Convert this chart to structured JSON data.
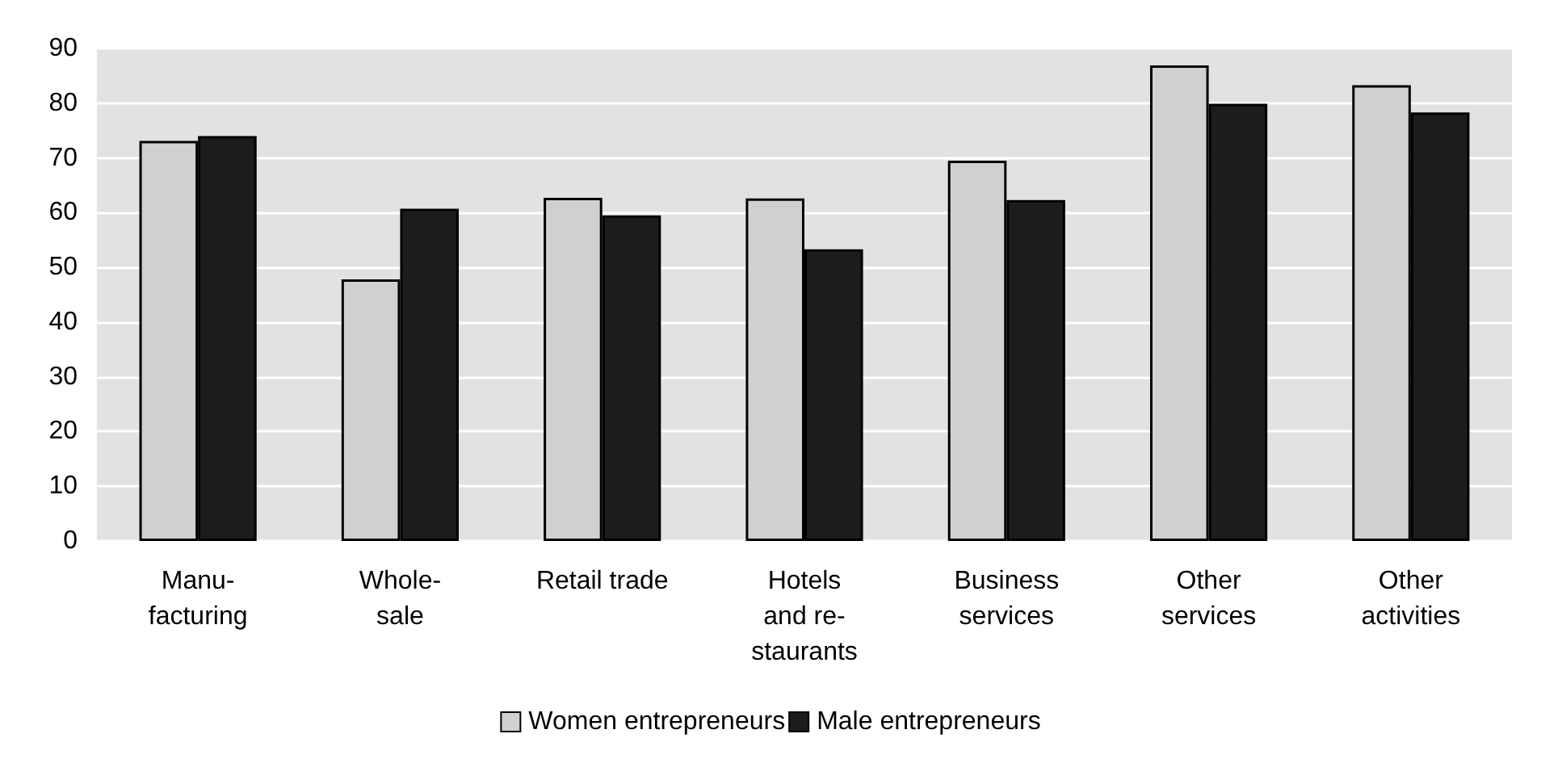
{
  "chart_data": {
    "type": "bar",
    "categories": [
      "Manu-\nfacturing",
      "Whole-\nsale",
      "Retail trade",
      "Hotels\nand re-\nstaurants",
      "Business\nservices",
      "Other\nservices",
      "Other\nactivities"
    ],
    "series": [
      {
        "name": "Women entrepreneurs",
        "color": "#d0d0d0",
        "values": [
          73.1,
          47.8,
          62.7,
          62.6,
          69.5,
          86.9,
          83.3
        ]
      },
      {
        "name": "Male entrepreneurs",
        "color": "#1c1c1c",
        "values": [
          74,
          60.7,
          59.5,
          53.3,
          62.3,
          79.9,
          78.3
        ]
      }
    ],
    "ylim": [
      0,
      90
    ],
    "yticks": [
      0,
      10,
      20,
      30,
      40,
      50,
      60,
      70,
      80,
      90
    ],
    "grid": "y",
    "legend": "bottom"
  }
}
